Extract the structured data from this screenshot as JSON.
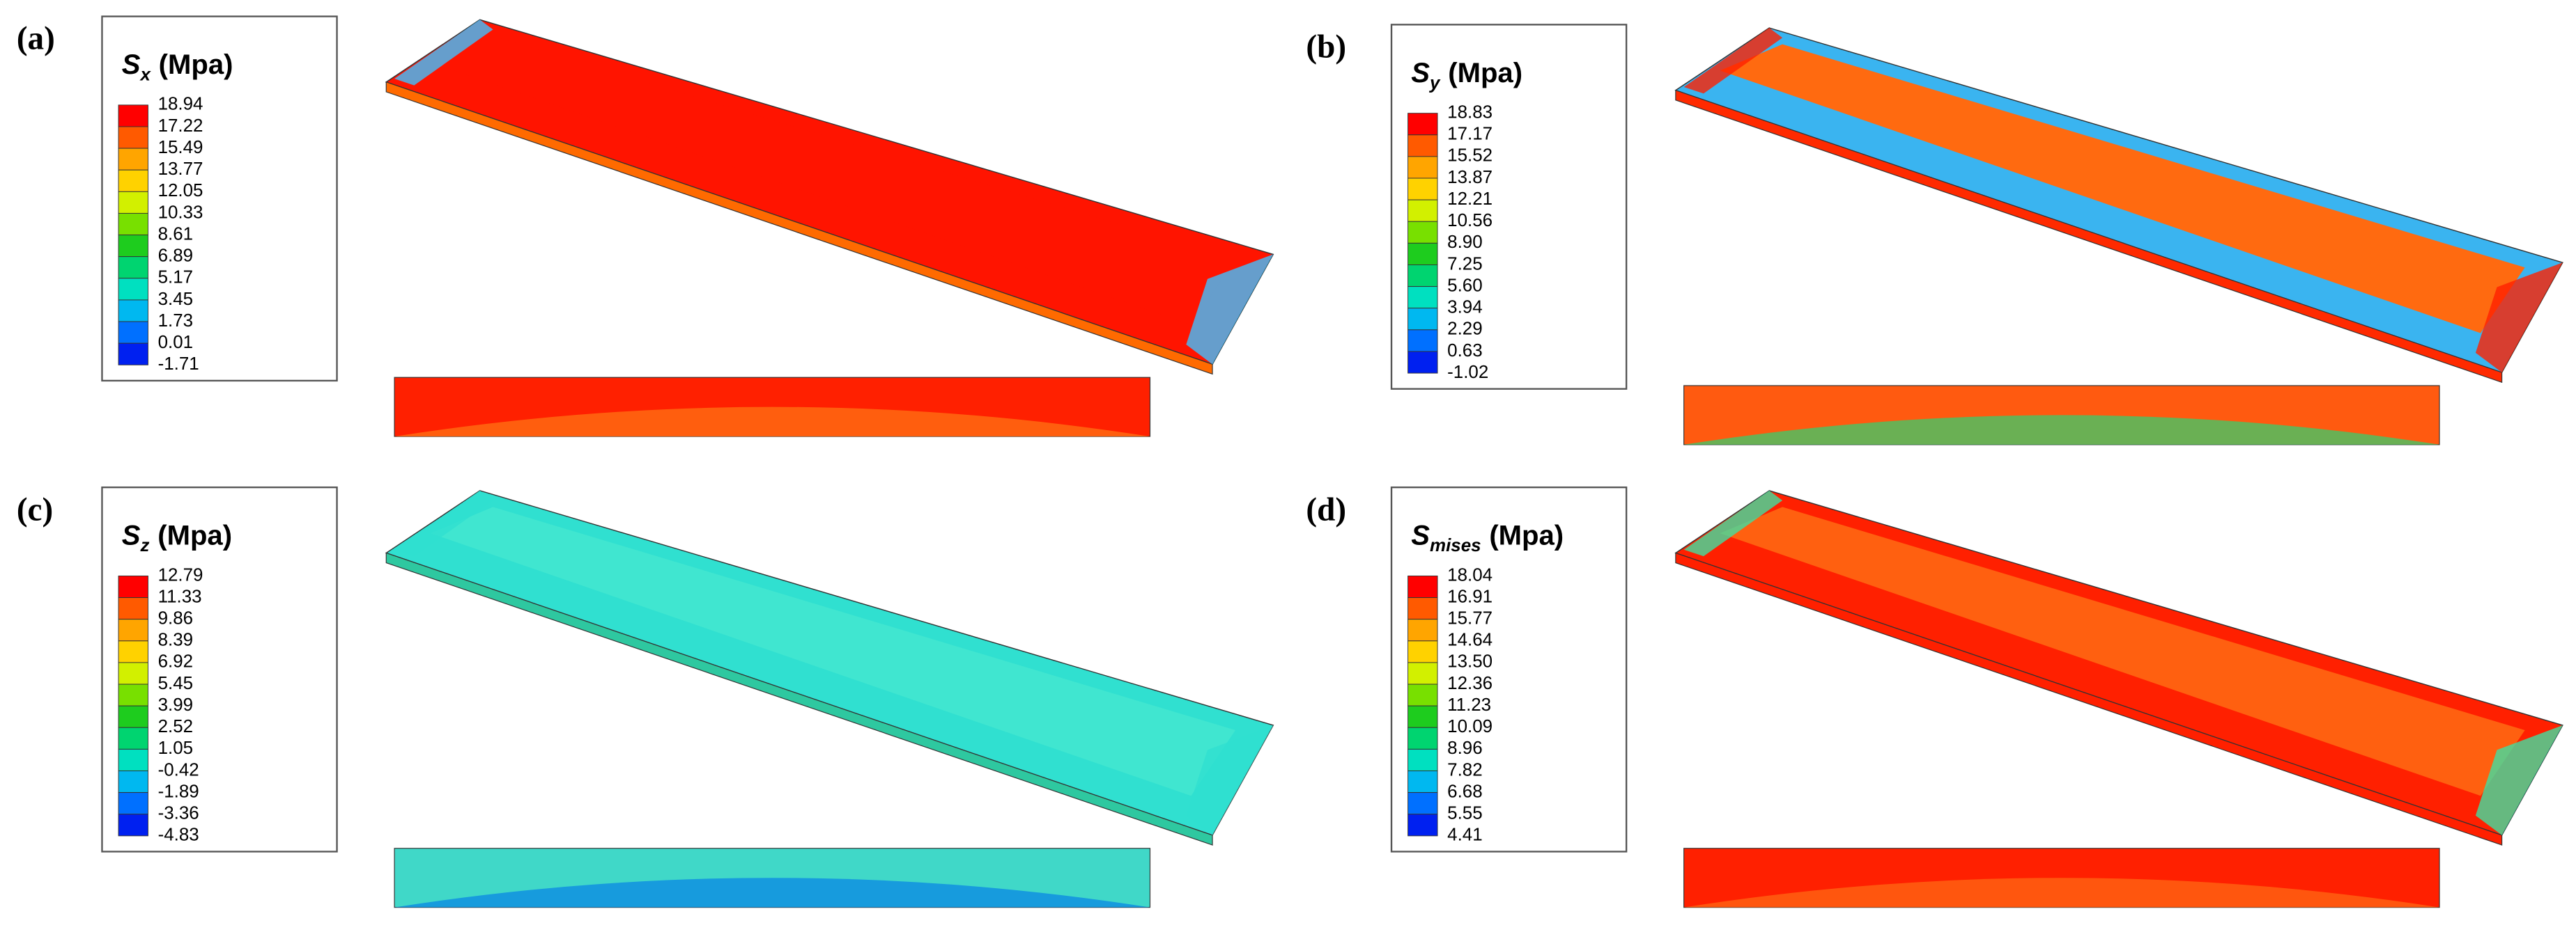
{
  "panels": [
    {
      "label": "(a)",
      "symbol": "S",
      "subscript": "x",
      "unit": "(Mpa)",
      "levels": [
        "18.94",
        "17.22",
        "15.49",
        "13.77",
        "12.05",
        "10.33",
        "8.61",
        "6.89",
        "5.17",
        "3.45",
        "1.73",
        "0.01",
        "-1.71"
      ]
    },
    {
      "label": "(b)",
      "symbol": "S",
      "subscript": "y",
      "unit": "(Mpa)",
      "levels": [
        "18.83",
        "17.17",
        "15.52",
        "13.87",
        "12.21",
        "10.56",
        "8.90",
        "7.25",
        "5.60",
        "3.94",
        "2.29",
        "0.63",
        "-1.02"
      ]
    },
    {
      "label": "(c)",
      "symbol": "S",
      "subscript": "z",
      "unit": "(Mpa)",
      "levels": [
        "12.79",
        "11.33",
        "9.86",
        "8.39",
        "6.92",
        "5.45",
        "3.99",
        "2.52",
        "1.05",
        "-0.42",
        "-1.89",
        "-3.36",
        "-4.83"
      ]
    },
    {
      "label": "(d)",
      "symbol": "S",
      "subscript": "mises",
      "unit": "(Mpa)",
      "levels": [
        "18.04",
        "16.91",
        "15.77",
        "14.64",
        "13.50",
        "12.36",
        "11.23",
        "10.09",
        "8.96",
        "7.82",
        "6.68",
        "5.55",
        "4.41"
      ]
    }
  ]
}
